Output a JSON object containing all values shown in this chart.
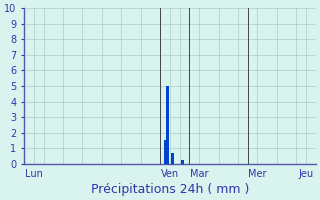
{
  "title": "Précipitations 24h ( mm )",
  "background_color": "#d9f4ee",
  "bar_color": "#0044cc",
  "grid_color": "#aacccc",
  "ylim": [
    0,
    10
  ],
  "yticks": [
    0,
    1,
    2,
    3,
    4,
    5,
    6,
    7,
    8,
    9,
    10
  ],
  "xlim": [
    0,
    120
  ],
  "day_labels": [
    "Lun",
    "Ven",
    "Mar",
    "Mer",
    "Jeu"
  ],
  "day_tick_positions": [
    4,
    60,
    72,
    96,
    116
  ],
  "vline_positions": [
    56,
    68,
    92
  ],
  "bars": [
    {
      "x": 56,
      "height": 0
    },
    {
      "x": 57,
      "height": 0
    },
    {
      "x": 58,
      "height": 1.5
    },
    {
      "x": 59,
      "height": 5.0
    },
    {
      "x": 60,
      "height": 0
    },
    {
      "x": 61,
      "height": 0.7
    },
    {
      "x": 62,
      "height": 0
    },
    {
      "x": 63,
      "height": 0
    },
    {
      "x": 64,
      "height": 0
    },
    {
      "x": 65,
      "height": 0.25
    },
    {
      "x": 66,
      "height": 0
    },
    {
      "x": 67,
      "height": 0
    },
    {
      "x": 68,
      "height": 0
    }
  ],
  "bar_width": 1.2,
  "vline_color": "#444444",
  "label_color": "#3333aa",
  "tick_fontsize": 7,
  "xlabel_fontsize": 9
}
